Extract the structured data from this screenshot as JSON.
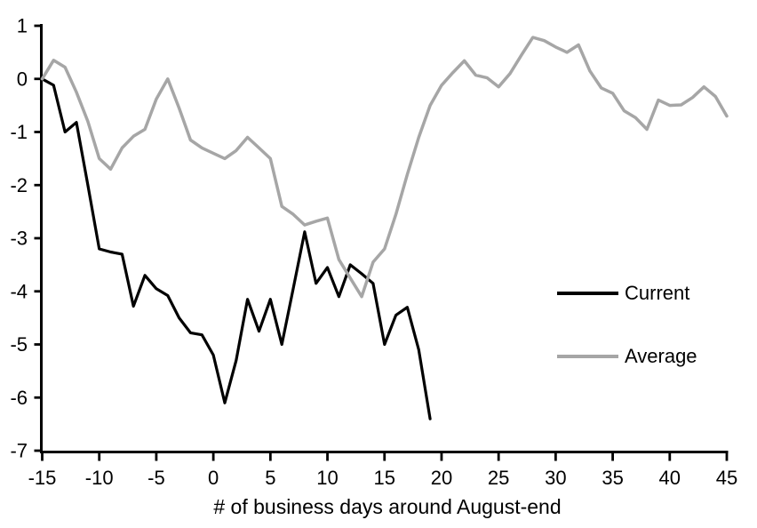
{
  "chart_data": {
    "type": "line",
    "title": "",
    "xlabel": "# of business days around August-end",
    "ylabel": "",
    "xlim": [
      -15,
      45
    ],
    "ylim": [
      -7,
      1
    ],
    "xticks": [
      -15,
      -10,
      -5,
      0,
      5,
      10,
      15,
      20,
      25,
      30,
      35,
      40,
      45
    ],
    "yticks": [
      1,
      0,
      -1,
      -2,
      -3,
      -4,
      -5,
      -6,
      -7
    ],
    "grid": false,
    "legend_position": "middle-right",
    "series": [
      {
        "name": "Current",
        "color": "#000000",
        "x_start": -15,
        "x_end": 19,
        "values": [
          0.0,
          -0.12,
          -1.0,
          -0.82,
          -2.0,
          -3.2,
          -3.26,
          -3.3,
          -4.28,
          -3.7,
          -3.95,
          -4.08,
          -4.5,
          -4.78,
          -4.82,
          -5.2,
          -6.1,
          -5.3,
          -4.15,
          -4.75,
          -4.15,
          -5.0,
          -3.95,
          -2.88,
          -3.85,
          -3.55,
          -4.1,
          -3.5,
          -3.67,
          -3.85,
          -5.0,
          -4.45,
          -4.3,
          -5.1,
          -6.4
        ]
      },
      {
        "name": "Average",
        "color": "#a6a6a6",
        "x_start": -15,
        "x_end": 45,
        "values": [
          0.0,
          0.35,
          0.22,
          -0.25,
          -0.8,
          -1.5,
          -1.7,
          -1.3,
          -1.08,
          -0.95,
          -0.38,
          0.0,
          -0.55,
          -1.15,
          -1.3,
          -1.4,
          -1.5,
          -1.35,
          -1.1,
          -1.3,
          -1.5,
          -2.4,
          -2.55,
          -2.75,
          -2.68,
          -2.62,
          -3.4,
          -3.75,
          -4.1,
          -3.45,
          -3.2,
          -2.55,
          -1.8,
          -1.1,
          -0.5,
          -0.12,
          0.12,
          0.34,
          0.07,
          0.02,
          -0.15,
          0.1,
          0.45,
          0.78,
          0.72,
          0.6,
          0.5,
          0.64,
          0.15,
          -0.17,
          -0.27,
          -0.6,
          -0.73,
          -0.95,
          -0.4,
          -0.5,
          -0.49,
          -0.35,
          -0.15,
          -0.33,
          -0.7
        ]
      }
    ]
  },
  "colors": {
    "background": "#ffffff",
    "axis": "#000000",
    "current_line": "#000000",
    "average_line": "#a6a6a6"
  }
}
